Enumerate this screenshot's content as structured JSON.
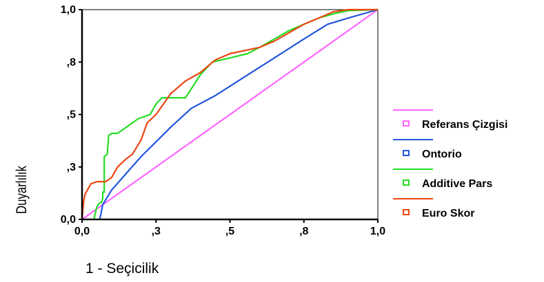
{
  "chart_data": {
    "type": "line",
    "xlabel": "1 - Seçicilik",
    "ylabel": "Duyarlılık",
    "xlim": [
      0,
      1
    ],
    "ylim": [
      0,
      1
    ],
    "x_ticks": [
      {
        "value": 0.0,
        "label": "0,0"
      },
      {
        "value": 0.25,
        "label": ",3"
      },
      {
        "value": 0.5,
        "label": ",5"
      },
      {
        "value": 0.75,
        "label": ",8"
      },
      {
        "value": 1.0,
        "label": "1,0"
      }
    ],
    "y_ticks": [
      {
        "value": 0.0,
        "label": "0,0"
      },
      {
        "value": 0.25,
        "label": ",3"
      },
      {
        "value": 0.5,
        "label": ",5"
      },
      {
        "value": 0.75,
        "label": ",8"
      },
      {
        "value": 1.0,
        "label": "1,0"
      }
    ],
    "legend_position": "right",
    "series": [
      {
        "name": "Referans Çizgisi",
        "color": "#ff66ff",
        "points": [
          [
            0,
            0
          ],
          [
            1,
            1
          ]
        ]
      },
      {
        "name": "Ontorio",
        "color": "#2255dd",
        "points": [
          [
            0.06,
            0
          ],
          [
            0.07,
            0.07
          ],
          [
            0.1,
            0.14
          ],
          [
            0.15,
            0.22
          ],
          [
            0.2,
            0.3
          ],
          [
            0.25,
            0.37
          ],
          [
            0.3,
            0.44
          ],
          [
            0.37,
            0.53
          ],
          [
            0.45,
            0.59
          ],
          [
            0.55,
            0.68
          ],
          [
            0.65,
            0.77
          ],
          [
            0.75,
            0.86
          ],
          [
            0.83,
            0.93
          ],
          [
            0.9,
            0.96
          ],
          [
            1.0,
            1.0
          ]
        ]
      },
      {
        "name": "Additive Pars",
        "color": "#22dd22",
        "points": [
          [
            0.04,
            0
          ],
          [
            0.045,
            0.03
          ],
          [
            0.05,
            0.06
          ],
          [
            0.06,
            0.08
          ],
          [
            0.065,
            0.08
          ],
          [
            0.07,
            0.1
          ],
          [
            0.07,
            0.13
          ],
          [
            0.075,
            0.13
          ],
          [
            0.075,
            0.3
          ],
          [
            0.085,
            0.31
          ],
          [
            0.09,
            0.4
          ],
          [
            0.1,
            0.41
          ],
          [
            0.12,
            0.41
          ],
          [
            0.19,
            0.48
          ],
          [
            0.23,
            0.5
          ],
          [
            0.25,
            0.55
          ],
          [
            0.27,
            0.58
          ],
          [
            0.35,
            0.58
          ],
          [
            0.4,
            0.69
          ],
          [
            0.44,
            0.75
          ],
          [
            0.5,
            0.77
          ],
          [
            0.56,
            0.79
          ],
          [
            0.6,
            0.82
          ],
          [
            0.65,
            0.86
          ],
          [
            0.7,
            0.9
          ],
          [
            0.75,
            0.93
          ],
          [
            0.8,
            0.96
          ],
          [
            0.85,
            0.98
          ],
          [
            0.9,
            0.995
          ],
          [
            1.0,
            1.0
          ]
        ]
      },
      {
        "name": "Euro Skor",
        "color": "#ee4411",
        "points": [
          [
            0.0,
            0.0
          ],
          [
            0.005,
            0.08
          ],
          [
            0.01,
            0.12
          ],
          [
            0.03,
            0.17
          ],
          [
            0.05,
            0.18
          ],
          [
            0.08,
            0.18
          ],
          [
            0.1,
            0.2
          ],
          [
            0.12,
            0.25
          ],
          [
            0.15,
            0.29
          ],
          [
            0.17,
            0.31
          ],
          [
            0.2,
            0.38
          ],
          [
            0.22,
            0.46
          ],
          [
            0.25,
            0.5
          ],
          [
            0.3,
            0.6
          ],
          [
            0.35,
            0.66
          ],
          [
            0.4,
            0.7
          ],
          [
            0.45,
            0.76
          ],
          [
            0.5,
            0.79
          ],
          [
            0.6,
            0.82
          ],
          [
            0.65,
            0.85
          ],
          [
            0.7,
            0.89
          ],
          [
            0.75,
            0.93
          ],
          [
            0.8,
            0.96
          ],
          [
            0.85,
            0.99
          ],
          [
            0.9,
            1.0
          ],
          [
            1.0,
            1.0
          ]
        ]
      }
    ]
  }
}
